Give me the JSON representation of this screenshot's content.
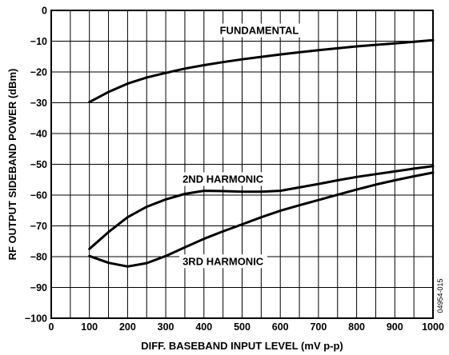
{
  "chart_data": {
    "type": "line",
    "xlabel": "DIFF. BASEBAND INPUT LEVEL (mV p-p)",
    "ylabel": "RF OUTPUT SIDEBAND POWER (dBm)",
    "xlim": [
      0,
      1000
    ],
    "ylim": [
      -100,
      0
    ],
    "x_ticks": [
      0,
      100,
      200,
      300,
      400,
      500,
      600,
      700,
      800,
      900,
      1000
    ],
    "y_ticks": [
      0,
      -10,
      -20,
      -30,
      -40,
      -50,
      -60,
      -70,
      -80,
      -90,
      -100
    ],
    "x_minor_step": 50,
    "grid": true,
    "figure_id": "04954-015",
    "series": [
      {
        "name": "FUNDAMENTAL",
        "points": [
          [
            100,
            -29.8
          ],
          [
            150,
            -26.5
          ],
          [
            200,
            -23.8
          ],
          [
            250,
            -21.8
          ],
          [
            300,
            -20.3
          ],
          [
            350,
            -18.9
          ],
          [
            400,
            -17.8
          ],
          [
            450,
            -16.8
          ],
          [
            500,
            -15.9
          ],
          [
            550,
            -15.1
          ],
          [
            600,
            -14.3
          ],
          [
            650,
            -13.6
          ],
          [
            700,
            -12.9
          ],
          [
            750,
            -12.3
          ],
          [
            800,
            -11.7
          ],
          [
            850,
            -11.2
          ],
          [
            900,
            -10.7
          ],
          [
            950,
            -10.2
          ],
          [
            1000,
            -9.7
          ]
        ]
      },
      {
        "name": "2ND HARMONIC",
        "points": [
          [
            100,
            -77.5
          ],
          [
            150,
            -72.0
          ],
          [
            200,
            -67.2
          ],
          [
            250,
            -63.8
          ],
          [
            300,
            -61.4
          ],
          [
            350,
            -59.6
          ],
          [
            400,
            -58.6
          ],
          [
            450,
            -58.7
          ],
          [
            500,
            -58.9
          ],
          [
            550,
            -58.9
          ],
          [
            600,
            -58.6
          ],
          [
            650,
            -57.5
          ],
          [
            700,
            -56.4
          ],
          [
            750,
            -55.2
          ],
          [
            800,
            -54.1
          ],
          [
            850,
            -53.2
          ],
          [
            900,
            -52.3
          ],
          [
            950,
            -51.4
          ],
          [
            1000,
            -50.6
          ]
        ]
      },
      {
        "name": "3RD HARMONIC",
        "points": [
          [
            100,
            -79.8
          ],
          [
            150,
            -82.0
          ],
          [
            200,
            -83.2
          ],
          [
            250,
            -82.1
          ],
          [
            300,
            -79.8
          ],
          [
            350,
            -77.0
          ],
          [
            400,
            -74.2
          ],
          [
            450,
            -71.8
          ],
          [
            500,
            -69.5
          ],
          [
            550,
            -67.2
          ],
          [
            600,
            -65.1
          ],
          [
            650,
            -63.3
          ],
          [
            700,
            -61.6
          ],
          [
            750,
            -59.9
          ],
          [
            800,
            -58.2
          ],
          [
            850,
            -56.6
          ],
          [
            900,
            -55.2
          ],
          [
            950,
            -53.9
          ],
          [
            1000,
            -52.7
          ]
        ]
      }
    ],
    "annotations": [
      {
        "text": "FUNDAMENTAL",
        "x": 545,
        "y": -6.5
      },
      {
        "text": "2ND HARMONIC",
        "x": 450,
        "y": -54.8
      },
      {
        "text": "3RD HARMONIC",
        "x": 450,
        "y": -81.5
      }
    ]
  }
}
